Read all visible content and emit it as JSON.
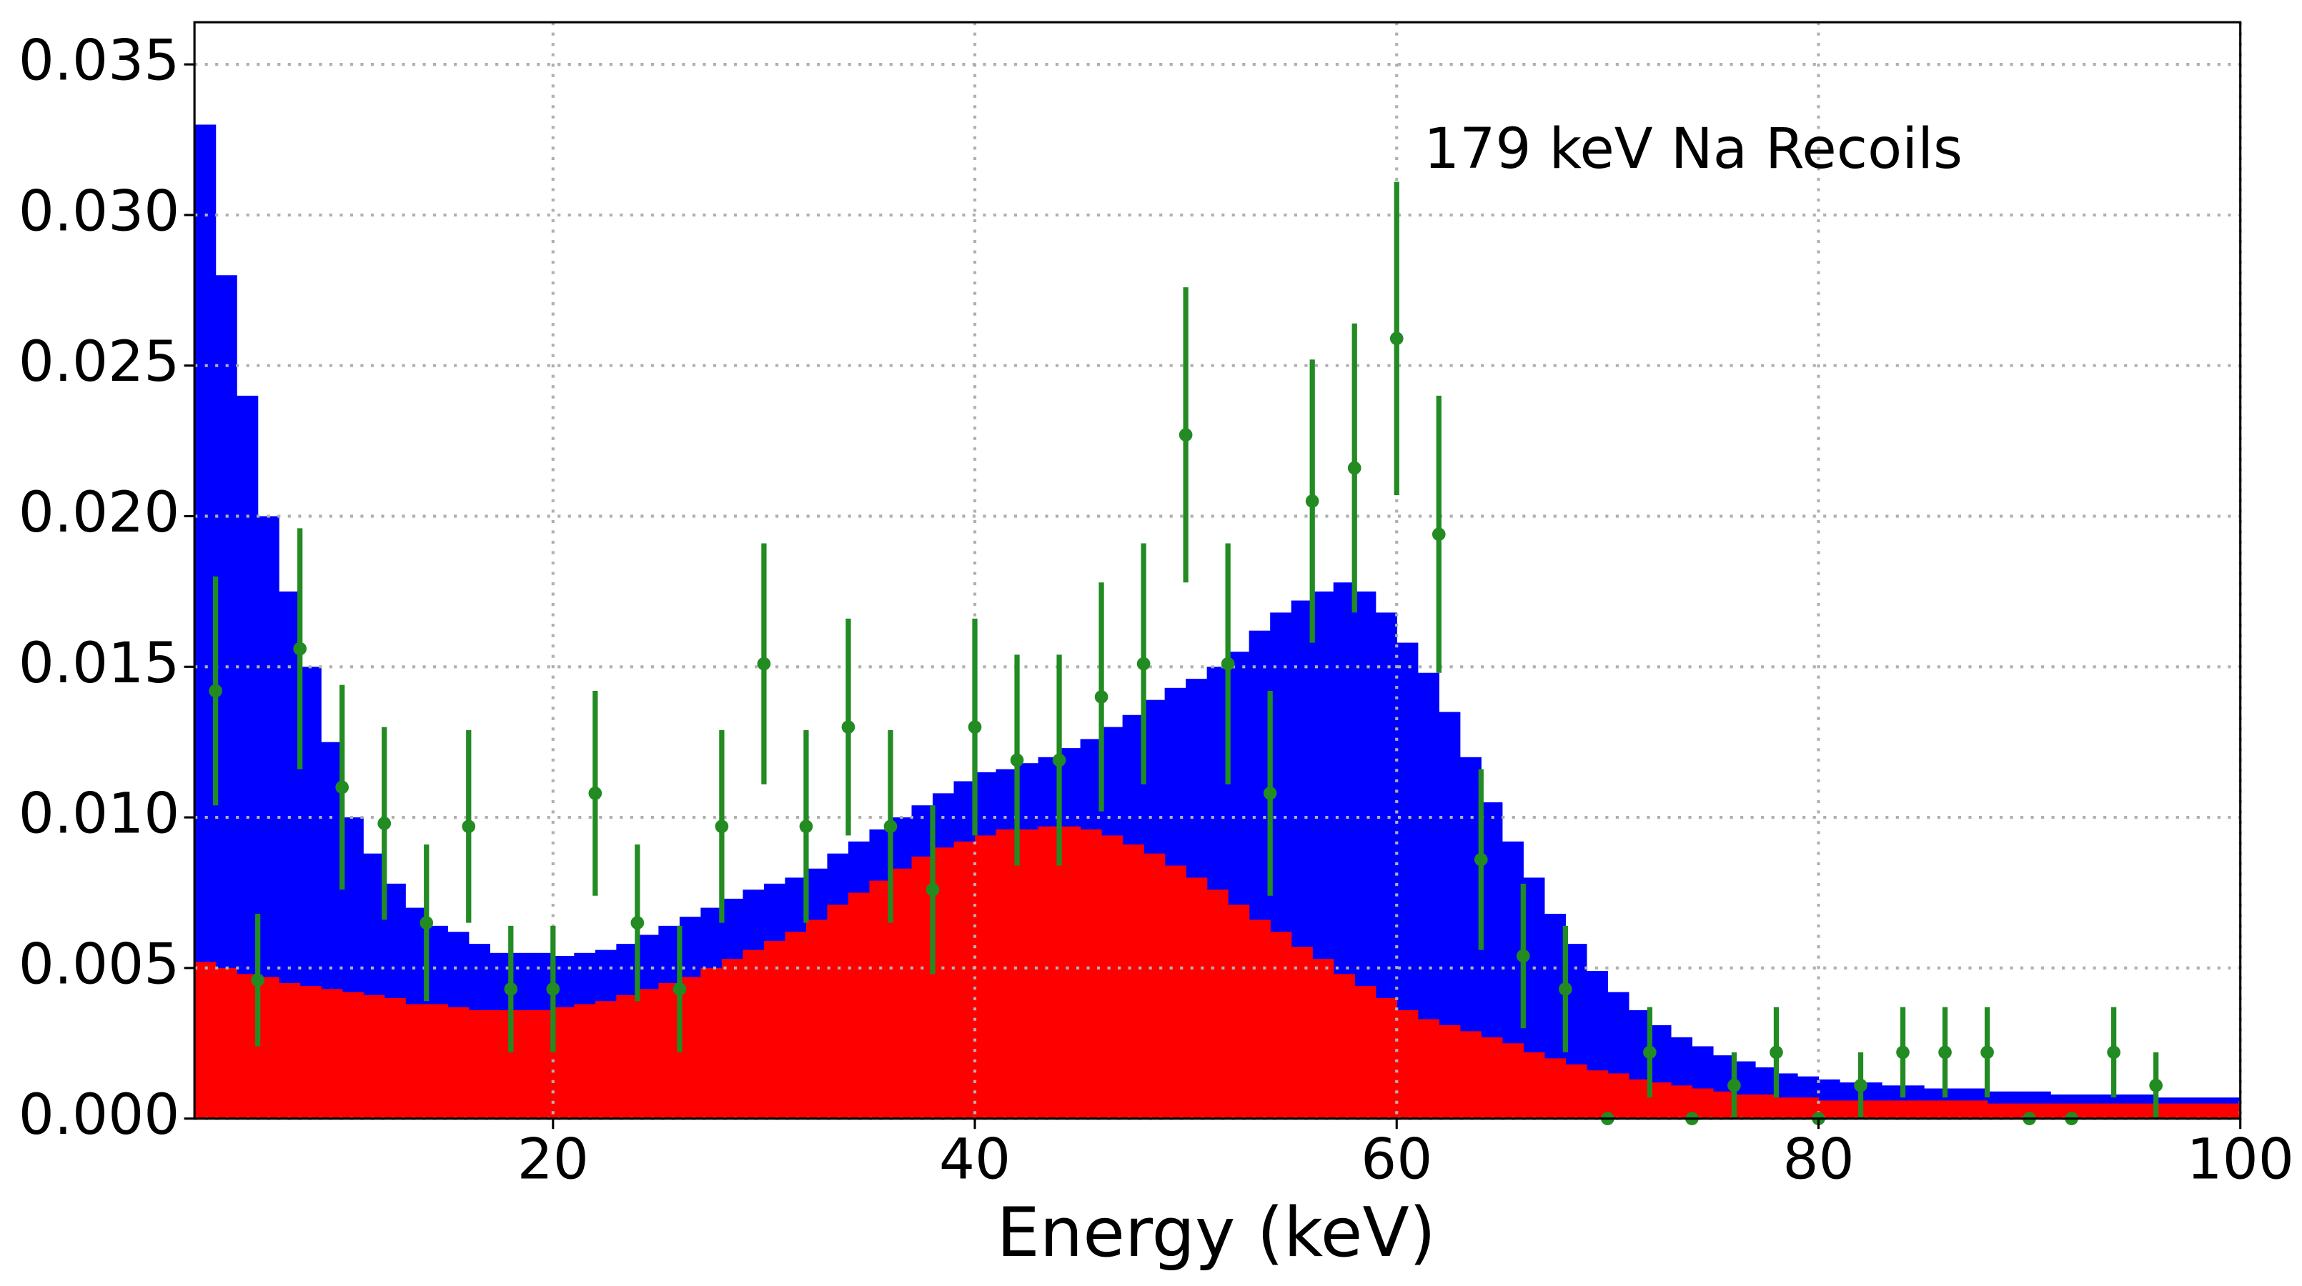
{
  "chart_data": {
    "type": "histogram",
    "annotation": "179 keV Na Recoils",
    "xlabel": "Energy (keV)",
    "bins": [
      3,
      4,
      5,
      6,
      7,
      8,
      9,
      10,
      11,
      12,
      13,
      14,
      15,
      16,
      17,
      18,
      19,
      20,
      21,
      22,
      23,
      24,
      25,
      26,
      27,
      28,
      29,
      30,
      31,
      32,
      33,
      34,
      35,
      36,
      37,
      38,
      39,
      40,
      41,
      42,
      43,
      44,
      45,
      46,
      47,
      48,
      49,
      50,
      51,
      52,
      53,
      54,
      55,
      56,
      57,
      58,
      59,
      60,
      61,
      62,
      63,
      64,
      65,
      66,
      67,
      68,
      69,
      70,
      71,
      72,
      73,
      74,
      75,
      76,
      77,
      78,
      79,
      80,
      81,
      82,
      83,
      84,
      85,
      86,
      87,
      88,
      89,
      90,
      91,
      92,
      93,
      94,
      95,
      96,
      97,
      98,
      99,
      100
    ],
    "series": [
      {
        "color": "#0000ff",
        "values": [
          0.033,
          0.028,
          0.024,
          0.02,
          0.0175,
          0.015,
          0.0125,
          0.01,
          0.0088,
          0.0078,
          0.007,
          0.0064,
          0.0062,
          0.0058,
          0.0055,
          0.0055,
          0.0055,
          0.0054,
          0.0055,
          0.0056,
          0.0058,
          0.0061,
          0.0064,
          0.0067,
          0.007,
          0.0073,
          0.0076,
          0.0078,
          0.008,
          0.0083,
          0.0088,
          0.0092,
          0.0096,
          0.01,
          0.0104,
          0.0108,
          0.0112,
          0.0115,
          0.0116,
          0.0118,
          0.012,
          0.0123,
          0.0126,
          0.013,
          0.0134,
          0.0139,
          0.0143,
          0.0146,
          0.015,
          0.0155,
          0.0162,
          0.0168,
          0.0172,
          0.0175,
          0.0178,
          0.0175,
          0.0168,
          0.0158,
          0.0148,
          0.0135,
          0.012,
          0.0105,
          0.0092,
          0.008,
          0.0068,
          0.0058,
          0.0049,
          0.0042,
          0.0036,
          0.0031,
          0.0027,
          0.0024,
          0.0021,
          0.0019,
          0.0017,
          0.0015,
          0.0014,
          0.0013,
          0.0012,
          0.0012,
          0.0011,
          0.0011,
          0.001,
          0.001,
          0.001,
          0.0009,
          0.0009,
          0.0009,
          0.0008,
          0.0008,
          0.0008,
          0.0008,
          0.0008,
          0.0007,
          0.0007,
          0.0007,
          0.0007
        ]
      },
      {
        "color": "#ff0000",
        "values": [
          0.0052,
          0.005,
          0.0048,
          0.0047,
          0.0045,
          0.0044,
          0.0043,
          0.0042,
          0.0041,
          0.004,
          0.0038,
          0.0038,
          0.0037,
          0.0036,
          0.0036,
          0.0036,
          0.0036,
          0.0037,
          0.0038,
          0.0039,
          0.0041,
          0.0043,
          0.0045,
          0.0047,
          0.005,
          0.0053,
          0.0056,
          0.0059,
          0.0062,
          0.0066,
          0.0071,
          0.0075,
          0.0079,
          0.0083,
          0.0087,
          0.009,
          0.0092,
          0.0094,
          0.0096,
          0.0096,
          0.0097,
          0.0097,
          0.0096,
          0.0094,
          0.0091,
          0.0088,
          0.0084,
          0.008,
          0.0076,
          0.0071,
          0.0066,
          0.0062,
          0.0057,
          0.0053,
          0.0048,
          0.0044,
          0.004,
          0.0036,
          0.0033,
          0.0031,
          0.0029,
          0.0027,
          0.0025,
          0.0022,
          0.002,
          0.0018,
          0.0016,
          0.0015,
          0.0013,
          0.0012,
          0.0011,
          0.001,
          0.0009,
          0.0008,
          0.0008,
          0.0007,
          0.0007,
          0.0006,
          0.0006,
          0.0006,
          0.0006,
          0.0006,
          0.0006,
          0.0006,
          0.0006,
          0.0005,
          0.0005,
          0.0005,
          0.0005,
          0.0005,
          0.0005,
          0.0005,
          0.0005,
          0.0005,
          0.0005,
          0.0005,
          0.0005
        ]
      }
    ],
    "errorbars": {
      "color": "#228b22",
      "x": [
        4,
        6,
        8,
        10,
        12,
        14,
        16,
        18,
        20,
        22,
        24,
        26,
        28,
        30,
        32,
        34,
        36,
        38,
        40,
        42,
        44,
        46,
        48,
        50,
        52,
        54,
        56,
        58,
        60,
        62,
        64,
        66,
        68,
        70,
        72,
        74,
        76,
        78,
        80,
        82,
        84,
        86,
        88,
        90,
        92,
        94,
        96
      ],
      "values": [
        0.0142,
        0.0046,
        0.0156,
        0.011,
        0.0098,
        0.0065,
        0.0097,
        0.0043,
        0.0043,
        0.0108,
        0.0065,
        0.0043,
        0.0097,
        0.0151,
        0.0097,
        0.013,
        0.0097,
        0.0076,
        0.013,
        0.0119,
        0.0119,
        0.014,
        0.0151,
        0.0227,
        0.0151,
        0.0108,
        0.0205,
        0.0216,
        0.0259,
        0.0194,
        0.0086,
        0.0054,
        0.0043,
        0,
        0.0022,
        0,
        0.0011,
        0.0022,
        0,
        0.0011,
        0.0022,
        0.0022,
        0.0022,
        0,
        0,
        0.0022,
        0.0011
      ],
      "errors": [
        0.0038,
        0.0022,
        0.004,
        0.0034,
        0.0032,
        0.0026,
        0.0032,
        0.0021,
        0.0021,
        0.0034,
        0.0026,
        0.0021,
        0.0032,
        0.004,
        0.0032,
        0.0036,
        0.0032,
        0.0028,
        0.0036,
        0.0035,
        0.0035,
        0.0038,
        0.004,
        0.0049,
        0.004,
        0.0034,
        0.0047,
        0.0048,
        0.0052,
        0.0046,
        0.003,
        0.0024,
        0.0021,
        0,
        0.0015,
        0,
        0.0011,
        0.0015,
        0,
        0.0011,
        0.0015,
        0.0015,
        0.0015,
        0,
        0,
        0.0015,
        0.0011
      ]
    },
    "xlim": [
      3,
      100
    ],
    "xticks": [
      20,
      40,
      60,
      80,
      100
    ],
    "ylim": [
      0,
      0.0364
    ],
    "yticks": [
      {
        "value": 0,
        "label": "0.000"
      },
      {
        "value": 0.005,
        "label": "0.005"
      },
      {
        "value": 0.01,
        "label": "0.010"
      },
      {
        "value": 0.015,
        "label": "0.015"
      },
      {
        "value": 0.02,
        "label": "0.020"
      },
      {
        "value": 0.025,
        "label": "0.025"
      },
      {
        "value": 0.03,
        "label": "0.030"
      },
      {
        "value": 0.035,
        "label": "0.035"
      }
    ],
    "grid": true
  }
}
